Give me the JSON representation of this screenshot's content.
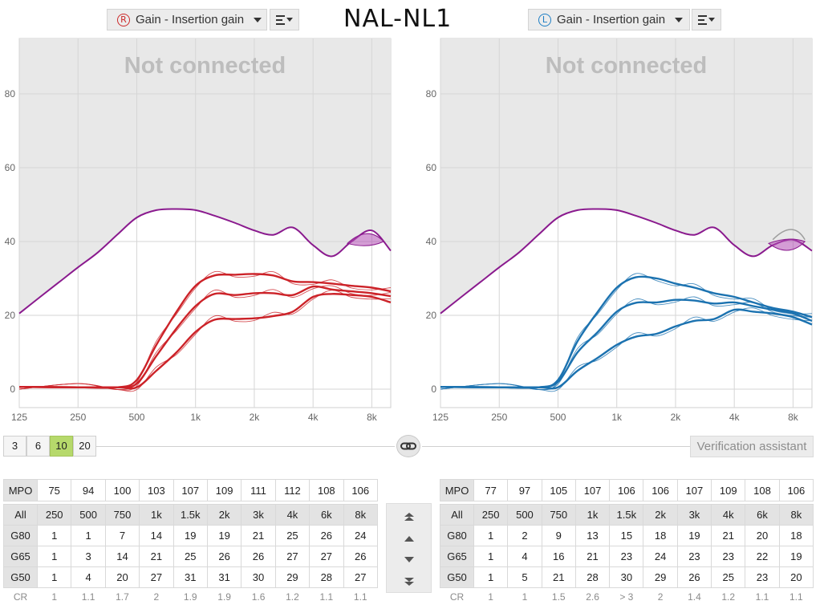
{
  "header": {
    "right_ear": {
      "badge": "R",
      "label": "Gain - Insertion gain",
      "color": "#cc2a2a"
    },
    "left_ear": {
      "badge": "L",
      "label": "Gain - Insertion gain",
      "color": "#1e7ec4"
    },
    "handwritten_title": "NAL-NL1"
  },
  "chart_overlay_text": "Not connected",
  "input_levels": {
    "options": [
      "3",
      "6",
      "10",
      "20"
    ],
    "selected": "10"
  },
  "verification_button": "Verification assistant",
  "colors": {
    "right_curve": "#cc2228",
    "left_curve": "#1b72b0",
    "mpo": "#8a1a8e",
    "shaded_region": "#e8e8e8",
    "active_level": "#b6d96b"
  },
  "chart_data": [
    {
      "type": "line",
      "ear": "right",
      "x_scale": "log",
      "x_ticks": [
        125,
        250,
        500,
        1000,
        2000,
        4000,
        8000
      ],
      "x_tick_labels": [
        "125",
        "250",
        "500",
        "1k",
        "2k",
        "4k",
        "8k"
      ],
      "xlim": [
        125,
        10000
      ],
      "y_ticks": [
        0,
        20,
        40,
        60,
        80
      ],
      "ylim": [
        -5,
        95
      ],
      "grid": true,
      "series": [
        {
          "role": "mpo",
          "x": [
            125,
            160,
            200,
            250,
            315,
            400,
            500,
            630,
            800,
            1000,
            1250,
            1600,
            2000,
            2500,
            3150,
            4000,
            5000,
            6300,
            8000,
            10000
          ],
          "y": [
            20.5,
            25,
            29,
            33,
            37,
            42,
            46.5,
            48.5,
            48.8,
            48.5,
            47,
            45,
            43,
            41.8,
            43.8,
            39,
            36,
            40,
            43,
            37.5
          ]
        },
        {
          "role": "G50",
          "x": [
            125,
            250,
            400,
            500,
            630,
            800,
            1000,
            1250,
            1600,
            2000,
            2500,
            3150,
            4000,
            5000,
            6300,
            8000,
            10000
          ],
          "y": [
            0.6,
            0.5,
            0.5,
            0.5,
            5,
            10,
            15.5,
            18.8,
            19,
            19.2,
            19.8,
            21,
            25,
            25.8,
            25.5,
            25,
            23.5
          ]
        },
        {
          "role": "G65",
          "x": [
            125,
            250,
            400,
            500,
            630,
            800,
            1000,
            1250,
            1600,
            2000,
            2500,
            3150,
            4000,
            5000,
            6300,
            8000,
            10000
          ],
          "y": [
            0.6,
            0.5,
            0.5,
            1.5,
            9,
            16.5,
            22.5,
            25.8,
            25.5,
            26,
            26,
            25.5,
            27.8,
            27,
            26.5,
            26,
            25.2
          ]
        },
        {
          "role": "G80",
          "x": [
            125,
            250,
            400,
            500,
            630,
            800,
            1000,
            1250,
            1600,
            2000,
            2500,
            3150,
            4000,
            5000,
            6300,
            8000,
            10000
          ],
          "y": [
            0.6,
            0.5,
            0.5,
            2.5,
            12,
            21,
            28,
            30.8,
            31,
            31.2,
            30.8,
            29.2,
            29,
            28.6,
            28,
            27.5,
            26.5
          ]
        }
      ]
    },
    {
      "type": "line",
      "ear": "left",
      "x_scale": "log",
      "x_ticks": [
        125,
        250,
        500,
        1000,
        2000,
        4000,
        8000
      ],
      "x_tick_labels": [
        "125",
        "250",
        "500",
        "1k",
        "2k",
        "4k",
        "8k"
      ],
      "xlim": [
        125,
        10000
      ],
      "y_ticks": [
        0,
        20,
        40,
        60,
        80
      ],
      "ylim": [
        -5,
        95
      ],
      "grid": true,
      "series": [
        {
          "role": "mpo",
          "x": [
            125,
            160,
            200,
            250,
            315,
            400,
            500,
            630,
            800,
            1000,
            1250,
            1600,
            2000,
            2500,
            3150,
            4000,
            5000,
            6300,
            8000,
            10000
          ],
          "y": [
            20.5,
            25,
            29,
            33,
            37,
            42,
            46.5,
            48.5,
            48.8,
            48.5,
            47,
            45,
            43,
            41.8,
            43.8,
            39,
            36,
            39,
            40.5,
            37.5
          ]
        },
        {
          "role": "G50",
          "x": [
            125,
            250,
            400,
            500,
            630,
            800,
            1000,
            1250,
            1600,
            2000,
            2500,
            3150,
            4000,
            5000,
            6300,
            8000,
            10000
          ],
          "y": [
            0.6,
            0.5,
            0.5,
            0.5,
            5,
            8.5,
            12,
            14.2,
            15,
            17,
            18.5,
            19,
            21.5,
            21,
            20.5,
            19.5,
            17.5
          ]
        },
        {
          "role": "G65",
          "x": [
            125,
            250,
            400,
            500,
            630,
            800,
            1000,
            1250,
            1600,
            2000,
            2500,
            3150,
            4000,
            5000,
            6300,
            8000,
            10000
          ],
          "y": [
            0.6,
            0.5,
            0.5,
            2,
            10,
            15.5,
            21,
            23.4,
            23.5,
            24.2,
            24,
            23.2,
            23.5,
            22.5,
            21.5,
            20.5,
            18.5
          ]
        },
        {
          "role": "G80",
          "x": [
            125,
            250,
            400,
            500,
            630,
            800,
            1000,
            1250,
            1600,
            2000,
            2500,
            3150,
            4000,
            5000,
            6300,
            8000,
            10000
          ],
          "y": [
            0.6,
            0.5,
            0.5,
            2.5,
            13,
            21,
            27.5,
            30.3,
            30,
            28.6,
            27.5,
            26,
            25,
            23.5,
            22,
            21,
            19.5
          ]
        }
      ]
    }
  ],
  "tables": {
    "right": {
      "mpo_label": "MPO",
      "mpo": [
        "75",
        "94",
        "100",
        "103",
        "107",
        "109",
        "111",
        "112",
        "108",
        "106"
      ],
      "freq_label": "All",
      "freqs": [
        "250",
        "500",
        "750",
        "1k",
        "1.5k",
        "2k",
        "3k",
        "4k",
        "6k",
        "8k"
      ],
      "rows": [
        {
          "label": "G80",
          "values": [
            "1",
            "1",
            "7",
            "14",
            "19",
            "19",
            "21",
            "25",
            "26",
            "24"
          ]
        },
        {
          "label": "G65",
          "values": [
            "1",
            "3",
            "14",
            "21",
            "25",
            "26",
            "26",
            "27",
            "27",
            "26"
          ]
        },
        {
          "label": "G50",
          "values": [
            "1",
            "4",
            "20",
            "27",
            "31",
            "31",
            "30",
            "29",
            "28",
            "27"
          ]
        }
      ],
      "cr_label": "CR",
      "cr": [
        "1",
        "1.1",
        "1.7",
        "2",
        "1.9",
        "1.9",
        "1.6",
        "1.2",
        "1.1",
        "1.1"
      ]
    },
    "left": {
      "mpo_label": "MPO",
      "mpo": [
        "77",
        "97",
        "105",
        "107",
        "106",
        "106",
        "107",
        "109",
        "108",
        "106"
      ],
      "freq_label": "All",
      "freqs": [
        "250",
        "500",
        "750",
        "1k",
        "1.5k",
        "2k",
        "3k",
        "4k",
        "6k",
        "8k"
      ],
      "rows": [
        {
          "label": "G80",
          "values": [
            "1",
            "2",
            "9",
            "13",
            "15",
            "18",
            "19",
            "21",
            "20",
            "18"
          ]
        },
        {
          "label": "G65",
          "values": [
            "1",
            "4",
            "16",
            "21",
            "23",
            "24",
            "23",
            "23",
            "22",
            "19"
          ]
        },
        {
          "label": "G50",
          "values": [
            "1",
            "5",
            "21",
            "28",
            "30",
            "29",
            "26",
            "25",
            "23",
            "20"
          ]
        }
      ],
      "cr_label": "CR",
      "cr": [
        "1",
        "1",
        "1.5",
        "2.6",
        "> 3",
        "2",
        "1.4",
        "1.2",
        "1.1",
        "1.1"
      ]
    }
  }
}
